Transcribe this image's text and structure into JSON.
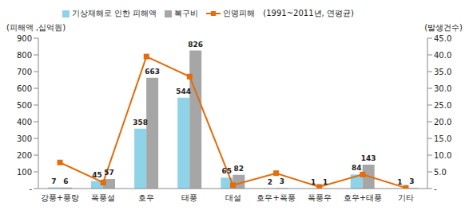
{
  "chart_data": {
    "type": "bar",
    "subtitle": "(1991~2011년, 연평균)",
    "y_label": "(피해액 ,십억원)",
    "y2_label": "(발생건수)",
    "categories": [
      "강풍+풍랑",
      "폭풍설",
      "호우",
      "태풍",
      "대설",
      "호우+폭풍",
      "폭풍우",
      "호우+태풍",
      "기타"
    ],
    "series": [
      {
        "name": "기상재해로 인한 피해액",
        "type": "bar",
        "color": "#8fd3e8",
        "data_labels": true,
        "values": [
          7,
          45,
          358,
          544,
          65,
          2,
          1,
          84,
          1
        ]
      },
      {
        "name": "복구비",
        "type": "bar",
        "color": "#a6a6a6",
        "data_labels": true,
        "values": [
          6,
          57,
          663,
          826,
          82,
          3,
          1,
          143,
          3
        ]
      },
      {
        "name": "인명피해",
        "type": "line",
        "axis": "y2",
        "color": "#e46c0a",
        "marker": "square",
        "data_labels": false,
        "values": [
          7.8,
          1.8,
          39.5,
          33.5,
          1.0,
          4.6,
          0.5,
          4.2,
          0.2
        ]
      }
    ],
    "ylim": [
      0,
      900
    ],
    "yticks": [
      {
        "value": 0,
        "label": "-"
      },
      100,
      200,
      300,
      400,
      500,
      600,
      700,
      800,
      900
    ],
    "y2lim": [
      0,
      45
    ],
    "y2ticks": [
      {
        "value": 0,
        "label": "-"
      },
      {
        "value": 5,
        "label": "5.0"
      },
      {
        "value": 10,
        "label": "10.0"
      },
      {
        "value": 15,
        "label": "15.0"
      },
      {
        "value": 20,
        "label": "20.0"
      },
      {
        "value": 25,
        "label": "25.0"
      },
      {
        "value": 30,
        "label": "30.0"
      },
      {
        "value": 35,
        "label": "35.0"
      },
      {
        "value": 40,
        "label": "40.0"
      },
      {
        "value": 45,
        "label": "45.0"
      }
    ],
    "grid": false
  }
}
